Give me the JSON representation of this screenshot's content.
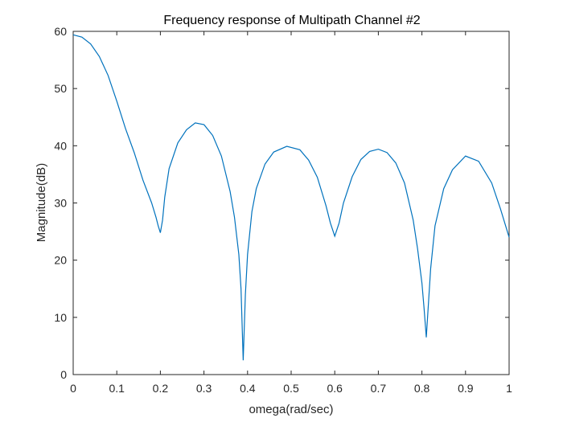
{
  "chart_data": {
    "type": "line",
    "title": "Frequency response of Multipath Channel #2",
    "xlabel": "omega(rad/sec)",
    "ylabel": "Magnitude(dB)",
    "xlim": [
      0,
      1
    ],
    "ylim": [
      0,
      60
    ],
    "xticks": [
      "0",
      "0.1",
      "0.2",
      "0.3",
      "0.4",
      "0.5",
      "0.6",
      "0.7",
      "0.8",
      "0.9",
      "1"
    ],
    "yticks": [
      "0",
      "10",
      "20",
      "30",
      "40",
      "50",
      "60"
    ],
    "grid": false,
    "box": true,
    "series": [
      {
        "color": "#0072BD",
        "x": [
          0,
          0.02,
          0.04,
          0.06,
          0.08,
          0.1,
          0.12,
          0.14,
          0.16,
          0.18,
          0.19,
          0.195,
          0.2,
          0.205,
          0.21,
          0.22,
          0.24,
          0.26,
          0.28,
          0.3,
          0.32,
          0.34,
          0.36,
          0.37,
          0.38,
          0.385,
          0.39,
          0.395,
          0.4,
          0.41,
          0.42,
          0.44,
          0.46,
          0.49,
          0.52,
          0.54,
          0.56,
          0.58,
          0.59,
          0.6,
          0.61,
          0.62,
          0.64,
          0.66,
          0.68,
          0.7,
          0.72,
          0.74,
          0.76,
          0.78,
          0.79,
          0.8,
          0.805,
          0.81,
          0.815,
          0.82,
          0.83,
          0.85,
          0.87,
          0.9,
          0.93,
          0.96,
          0.98,
          1.0
        ],
        "y": [
          59.4,
          59.0,
          57.8,
          55.6,
          52.3,
          47.8,
          43.0,
          38.8,
          34.0,
          30.0,
          27.5,
          26.0,
          24.8,
          27.0,
          31.0,
          36.0,
          40.5,
          42.8,
          44.0,
          43.7,
          41.8,
          38.2,
          32.0,
          27.5,
          21.0,
          15.0,
          2.5,
          14.0,
          21.0,
          28.5,
          32.5,
          36.8,
          38.9,
          39.9,
          39.3,
          37.5,
          34.5,
          29.5,
          26.5,
          24.2,
          26.5,
          30.0,
          34.6,
          37.6,
          39.0,
          39.4,
          38.8,
          37.0,
          33.5,
          27.0,
          22.0,
          16.0,
          11.5,
          6.5,
          12.5,
          18.5,
          26.0,
          32.5,
          35.8,
          38.2,
          37.3,
          33.5,
          29.0,
          24.0
        ]
      }
    ]
  }
}
